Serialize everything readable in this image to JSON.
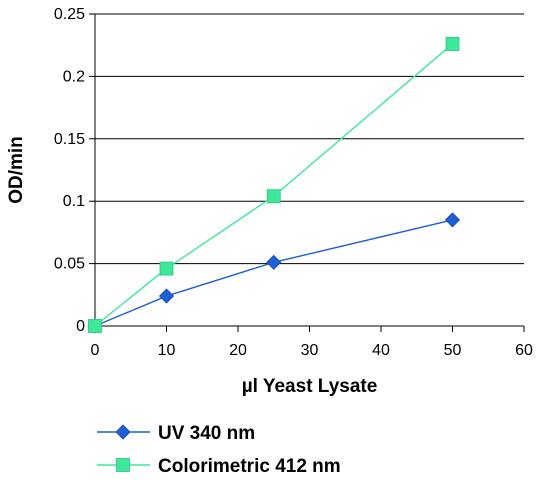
{
  "chart_data": {
    "type": "line",
    "title": "",
    "xlabel": "µl Yeast Lysate",
    "ylabel": "OD/min",
    "xlim": [
      0,
      60
    ],
    "ylim": [
      0,
      0.25
    ],
    "xticks": [
      0,
      10,
      20,
      30,
      40,
      50,
      60
    ],
    "yticks": [
      0,
      0.05,
      0.1,
      0.15,
      0.2,
      0.25
    ],
    "xtick_labels": [
      "0",
      "10",
      "20",
      "30",
      "40",
      "50",
      "60"
    ],
    "ytick_labels": [
      "0",
      "0.05",
      "0.1",
      "0.15",
      "0.2",
      "0.25"
    ],
    "grid": "horizontal",
    "legend_position": "bottom",
    "series": [
      {
        "name": "UV 340 nm",
        "x": [
          0,
          10,
          25,
          50
        ],
        "y": [
          0,
          0.024,
          0.051,
          0.085
        ],
        "color": "#1f5fd6",
        "marker": "diamond"
      },
      {
        "name": "Colorimetric 412 nm",
        "x": [
          0,
          10,
          25,
          50
        ],
        "y": [
          0,
          0.046,
          0.104,
          0.226
        ],
        "color": "#3ee89a",
        "marker": "square"
      }
    ]
  }
}
